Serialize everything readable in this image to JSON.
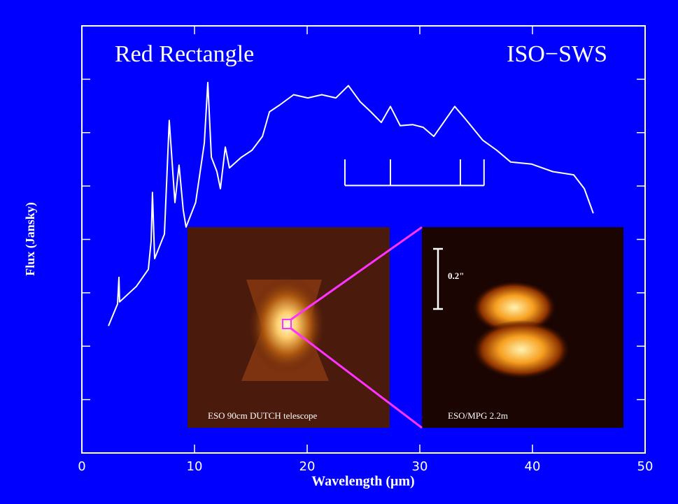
{
  "chart_data": {
    "type": "line",
    "title": "Red Rectangle",
    "subtitle": "ISO−SWS",
    "x_label": "Wavelength (μm)",
    "y_label": "Flux (Jansky)",
    "color": "#ffffff",
    "x": [
      2.36,
      3.17,
      3.29,
      3.35,
      4.84,
      5.9,
      6.15,
      6.27,
      6.46,
      7.33,
      7.76,
      8.26,
      8.63,
      9.0,
      9.25,
      10.1,
      10.87,
      11.18,
      11.5,
      11.99,
      12.3,
      12.73,
      13.1,
      14.16,
      15.1,
      16.03,
      16.65,
      17.58,
      18.8,
      20.06,
      21.3,
      22.55,
      23.66,
      24.7,
      25.65,
      26.58,
      27.39,
      28.26,
      29.38,
      30.3,
      31.24,
      33.1,
      34.03,
      35.58,
      36.83,
      38.07,
      39.94,
      41.8,
      43.66,
      44.6,
      45.4
    ],
    "values": [
      2.38,
      2.79,
      3.29,
      2.83,
      3.12,
      3.44,
      3.97,
      4.88,
      3.64,
      4.1,
      6.23,
      4.69,
      5.39,
      4.55,
      4.23,
      4.69,
      5.8,
      6.94,
      5.54,
      5.27,
      4.95,
      5.73,
      5.34,
      5.54,
      5.67,
      5.93,
      6.39,
      6.52,
      6.71,
      6.65,
      6.71,
      6.65,
      6.88,
      6.58,
      6.39,
      6.19,
      6.49,
      6.13,
      6.15,
      6.1,
      5.93,
      6.49,
      6.26,
      5.86,
      5.67,
      5.45,
      5.41,
      5.27,
      5.21,
      4.95,
      4.49
    ],
    "xlim": [
      0,
      50
    ],
    "xticks": [
      0,
      10,
      20,
      30,
      40,
      50
    ],
    "ylim": [
      0,
      8
    ],
    "yticks": [
      1,
      2,
      3,
      4,
      5,
      6,
      7
    ],
    "bracket": {
      "x": [
        23.35,
        27.39,
        33.6,
        35.7
      ],
      "top": 5.5,
      "bottom": 5.01
    },
    "insets": [
      {
        "label": "ESO 90cm DUTCH telescope"
      },
      {
        "label": "ESO/MPG 2.2m",
        "scale_label": "0.2\""
      }
    ]
  }
}
